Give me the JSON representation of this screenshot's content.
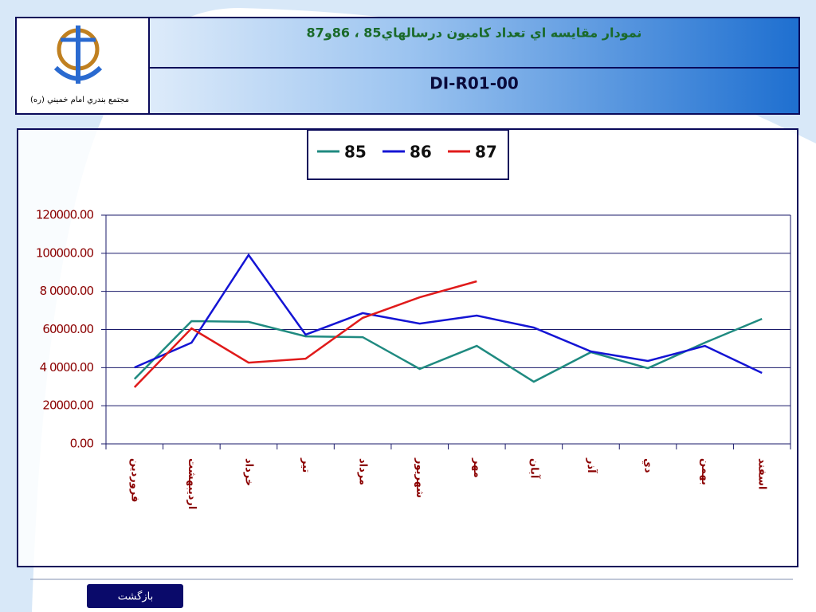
{
  "logo_caption": "مجتمع بندري امام خميني (ره)",
  "button": "بازگشت",
  "chart_data": {
    "type": "line",
    "title": "نمودار مقايسه اي تعداد كاميون درسالهاي85 ، 86و87",
    "subtitle": "DI-R01-00",
    "categories": [
      "فروردين",
      "ارديبهشت",
      "خرداد",
      "تير",
      "مرداد",
      "شهريور",
      "مهر",
      "آبان",
      "آذر",
      "دي",
      "بهمن",
      "اسفند"
    ],
    "series": [
      {
        "name": "85",
        "color": "#1f8a80",
        "values": [
          34000,
          64400,
          64000,
          56400,
          56000,
          39300,
          51400,
          32600,
          48100,
          39700,
          53100,
          65600
        ]
      },
      {
        "name": "86",
        "color": "#1414d4",
        "values": [
          40100,
          53100,
          99100,
          57300,
          68600,
          63100,
          67300,
          61000,
          48500,
          43500,
          51400,
          37200
        ]
      },
      {
        "name": "87",
        "color": "#e01a1a",
        "values": [
          29700,
          60600,
          42600,
          44700,
          66100,
          76900,
          85300,
          null,
          null,
          null,
          null,
          null
        ]
      }
    ],
    "ylim": [
      0,
      120000
    ],
    "yticks": [
      {
        "value": 0,
        "label": "0.00"
      },
      {
        "value": 20000,
        "label": "20000.00"
      },
      {
        "value": 40000,
        "label": "4 0000.00"
      },
      {
        "value": 60000,
        "label": "60000.00"
      },
      {
        "value": 80000,
        "label": "8 0000.00"
      },
      {
        "value": 100000,
        "label": "100000.00"
      },
      {
        "value": 120000,
        "label": "120000.00"
      }
    ],
    "grid": true,
    "legend": "top"
  }
}
